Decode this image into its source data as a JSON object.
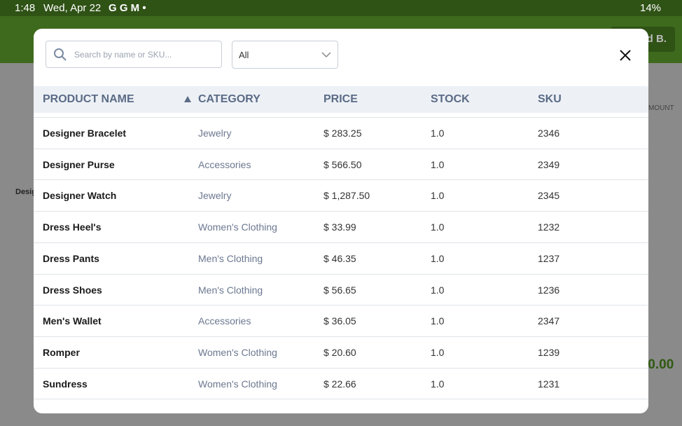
{
  "status_bar": {
    "time": "1:48",
    "date": "Wed, Apr 22",
    "apps": "G G M •",
    "battery": "14%"
  },
  "background": {
    "user_button": "d B.",
    "product_label": "Desig",
    "column_header": "MOUNT",
    "total": ".0.00"
  },
  "modal": {
    "search_placeholder": "Search by name or SKU...",
    "filter": "All",
    "table": {
      "columns": [
        "PRODUCT NAME",
        "CATEGORY",
        "PRICE",
        "STOCK",
        "SKU"
      ],
      "rows": [
        [
          "Designer Bracelet",
          "Jewelry",
          "$ 283.25",
          "1.0",
          "2346"
        ],
        [
          "Designer Purse",
          "Accessories",
          "$ 566.50",
          "1.0",
          "2349"
        ],
        [
          "Designer Watch",
          "Jewelry",
          "$ 1,287.50",
          "1.0",
          "2345"
        ],
        [
          "Dress Heel's",
          "Women's Clothing",
          "$ 33.99",
          "1.0",
          "1232"
        ],
        [
          "Dress Pants",
          "Men's Clothing",
          "$ 46.35",
          "1.0",
          "1237"
        ],
        [
          "Dress Shoes",
          "Men's Clothing",
          "$ 56.65",
          "1.0",
          "1236"
        ],
        [
          "Men's Wallet",
          "Accessories",
          "$ 36.05",
          "1.0",
          "2347"
        ],
        [
          "Romper",
          "Women's Clothing",
          "$ 20.60",
          "1.0",
          "1239"
        ],
        [
          "Sundress",
          "Women's Clothing",
          "$ 22.66",
          "1.0",
          "1231"
        ]
      ]
    }
  }
}
